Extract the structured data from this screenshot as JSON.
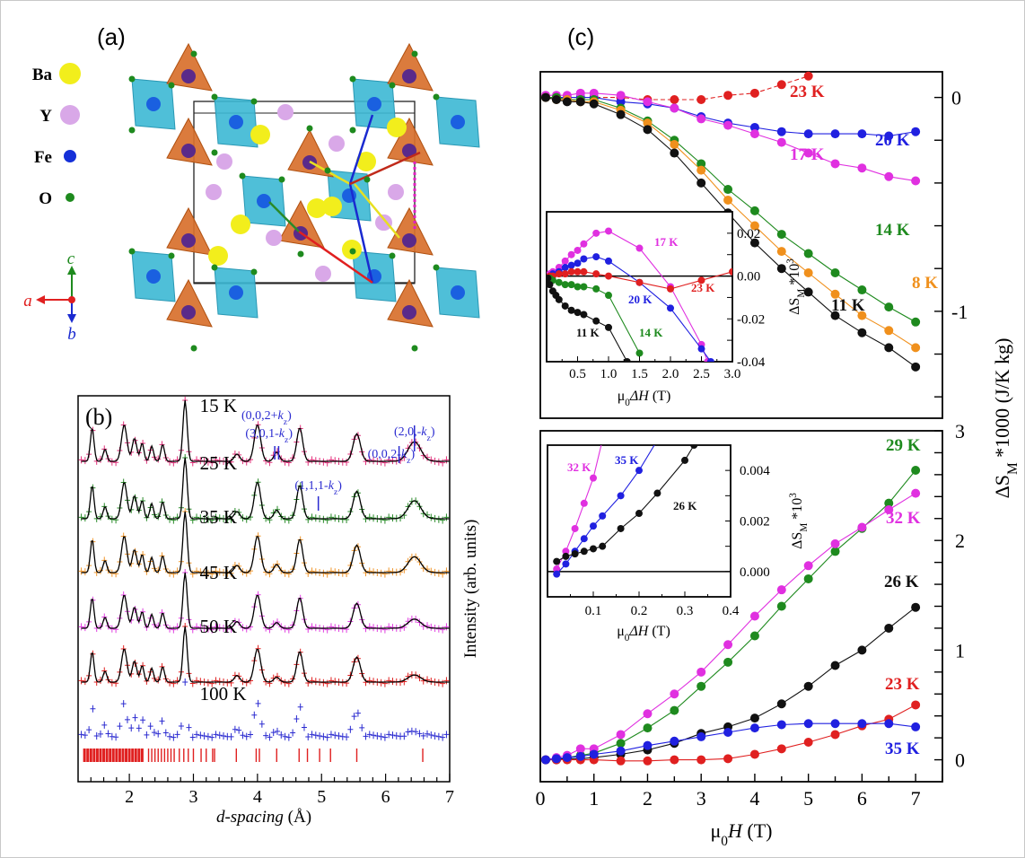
{
  "panel_labels": {
    "a": "(a)",
    "b": "(b)",
    "c": "(c)"
  },
  "structure": {
    "legend": [
      {
        "element": "Ba",
        "color": "#f2ee1c"
      },
      {
        "element": "Y",
        "color": "#d9a8e8"
      },
      {
        "element": "Fe",
        "color": "#1530d8"
      },
      {
        "element": "O",
        "color": "#1e8a1e"
      }
    ],
    "axes_labels": {
      "a": "a",
      "b": "b",
      "c": "c"
    },
    "colors": {
      "octahedron": "#3cb8d4",
      "tetrahedron": "#d8702c",
      "cell": "#222222"
    }
  },
  "chart_data": [
    {
      "id": "b",
      "type": "line",
      "title": "(b)",
      "xlabel": "d-spacing (Å)",
      "ylabel": "Intensity (arb. units)",
      "xlim": [
        1.2,
        7
      ],
      "xticks": [
        2,
        3,
        4,
        5,
        6,
        7
      ],
      "series": [
        {
          "name": "15 K",
          "color": "#e0307a"
        },
        {
          "name": "25 K",
          "color": "#2a8a2a"
        },
        {
          "name": "35 K",
          "color": "#f0962c"
        },
        {
          "name": "45 K",
          "color": "#e040e0"
        },
        {
          "name": "50 K",
          "color": "#e02020"
        },
        {
          "name": "100 K",
          "color": "#2a2ad0"
        }
      ],
      "peaks_d": [
        1.42,
        1.62,
        1.92,
        2.08,
        2.2,
        2.35,
        2.52,
        2.87,
        3.68,
        4.0,
        4.3,
        4.66,
        5.55,
        6.45
      ],
      "bragg_ticks": [
        1.3,
        1.35,
        1.4,
        1.45,
        1.5,
        1.55,
        1.6,
        1.65,
        1.7,
        1.75,
        1.8,
        1.85,
        1.9,
        1.95,
        2.0,
        2.05,
        2.1,
        2.15,
        2.2,
        2.3,
        2.35,
        2.4,
        2.45,
        2.5,
        2.55,
        2.6,
        2.65,
        2.7,
        2.78,
        2.85,
        2.92,
        3.0,
        3.12,
        3.2,
        3.3,
        3.33,
        3.67,
        3.98,
        4.03,
        4.3,
        4.65,
        4.78,
        4.97,
        5.14,
        5.55,
        6.58
      ],
      "annotations": [
        {
          "text": "(0,0,2+kz)",
          "d": 4.28
        },
        {
          "text": "(3,0,1-kz)",
          "d": 4.32
        },
        {
          "text": "(0,0,2-kz)",
          "d": 6.2
        },
        {
          "text": "(2,0,-kz)",
          "d": 6.45
        },
        {
          "text": "(1,1,1-kz)",
          "d": 4.95
        }
      ],
      "annotation_color": "#2a2ad0"
    },
    {
      "id": "c-top",
      "type": "line",
      "xlabel": "μ0H (T)",
      "ylabel": "ΔSM *1000 (J/K kg)",
      "xlim": [
        0,
        7.5
      ],
      "ylim": [
        -1.5,
        0.12
      ],
      "yticks": [
        0,
        -1
      ],
      "series": [
        {
          "name": "23 K",
          "color": "#e02020",
          "dashed": true,
          "x": [
            0.1,
            0.3,
            0.5,
            0.75,
            1,
            1.5,
            2,
            2.5,
            3,
            3.5,
            4,
            4.5,
            5
          ],
          "y": [
            0,
            0,
            0,
            0,
            0,
            0,
            -0.01,
            -0.01,
            -0.01,
            0.01,
            0.02,
            0.06,
            0.1
          ]
        },
        {
          "name": "20 K",
          "color": "#2020e0",
          "x": [
            0.1,
            0.3,
            0.5,
            0.75,
            1,
            1.5,
            2,
            2.5,
            3,
            3.5,
            4,
            4.5,
            5,
            5.5,
            6,
            6.5,
            7
          ],
          "y": [
            0,
            0,
            0,
            0,
            0,
            -0.02,
            -0.03,
            -0.05,
            -0.09,
            -0.12,
            -0.14,
            -0.16,
            -0.17,
            -0.17,
            -0.17,
            -0.18,
            -0.16
          ]
        },
        {
          "name": "17 K",
          "color": "#e030e0",
          "x": [
            0.1,
            0.3,
            0.5,
            0.75,
            1,
            1.5,
            2,
            2.5,
            3,
            3.5,
            4,
            4.5,
            5,
            5.5,
            6,
            6.5,
            7
          ],
          "y": [
            0.01,
            0.01,
            0.01,
            0.02,
            0.02,
            0.01,
            -0.02,
            -0.05,
            -0.1,
            -0.13,
            -0.17,
            -0.21,
            -0.26,
            -0.31,
            -0.33,
            -0.37,
            -0.39
          ]
        },
        {
          "name": "14 K",
          "color": "#1e8a1e",
          "x": [
            0.1,
            0.3,
            0.5,
            0.75,
            1,
            1.5,
            2,
            2.5,
            3,
            3.5,
            4,
            4.5,
            5,
            5.5,
            6,
            6.5,
            7
          ],
          "y": [
            0,
            0,
            -0.01,
            -0.01,
            -0.01,
            -0.05,
            -0.11,
            -0.2,
            -0.31,
            -0.43,
            -0.53,
            -0.64,
            -0.73,
            -0.82,
            -0.9,
            -0.98,
            -1.05
          ]
        },
        {
          "name": "8 K",
          "color": "#f0901c",
          "x": [
            0.1,
            0.3,
            0.5,
            0.75,
            1,
            1.5,
            2,
            2.5,
            3,
            3.5,
            4,
            4.5,
            5,
            5.5,
            6,
            6.5,
            7
          ],
          "y": [
            0,
            -0.01,
            -0.01,
            -0.02,
            -0.02,
            -0.06,
            -0.12,
            -0.22,
            -0.34,
            -0.48,
            -0.6,
            -0.72,
            -0.82,
            -0.92,
            -1.02,
            -1.09,
            -1.17
          ]
        },
        {
          "name": "11 K",
          "color": "#111111",
          "x": [
            0.1,
            0.3,
            0.5,
            0.75,
            1,
            1.5,
            2,
            2.5,
            3,
            3.5,
            4,
            4.5,
            5,
            5.5,
            6,
            6.5,
            7
          ],
          "y": [
            0,
            -0.01,
            -0.02,
            -0.02,
            -0.03,
            -0.08,
            -0.15,
            -0.26,
            -0.4,
            -0.54,
            -0.68,
            -0.8,
            -0.91,
            -1.02,
            -1.1,
            -1.17,
            -1.26
          ]
        }
      ],
      "inset": {
        "xlabel": "μ0ΔH (T)",
        "ylabel": "ΔSM *10^3",
        "xlim": [
          0,
          3.0
        ],
        "ylim": [
          -0.04,
          0.03
        ],
        "xticks": [
          0.5,
          1.0,
          1.5,
          2.0,
          2.5,
          3.0
        ],
        "yticks": [
          0.02,
          0.0,
          -0.02,
          -0.04
        ],
        "series": [
          {
            "name": "17 K",
            "color": "#e030e0",
            "x": [
              0.05,
              0.1,
              0.2,
              0.3,
              0.4,
              0.5,
              0.6,
              0.8,
              1.0,
              1.5,
              2.0,
              2.5,
              2.6
            ],
            "y": [
              0.001,
              0.002,
              0.004,
              0.007,
              0.01,
              0.012,
              0.015,
              0.02,
              0.021,
              0.013,
              -0.005,
              -0.032,
              -0.04
            ]
          },
          {
            "name": "20 K",
            "color": "#2020e0",
            "x": [
              0.05,
              0.1,
              0.2,
              0.3,
              0.4,
              0.5,
              0.6,
              0.8,
              1.0,
              1.5,
              2.0,
              2.5,
              2.65
            ],
            "y": [
              0,
              0.001,
              0.002,
              0.004,
              0.005,
              0.006,
              0.008,
              0.009,
              0.007,
              -0.003,
              -0.015,
              -0.034,
              -0.04
            ]
          },
          {
            "name": "23 K",
            "color": "#e02020",
            "x": [
              0.05,
              0.1,
              0.2,
              0.3,
              0.4,
              0.5,
              0.6,
              0.8,
              1.0,
              1.5,
              2.0,
              2.5,
              3.0
            ],
            "y": [
              0,
              0,
              0.001,
              0.001,
              0.002,
              0.002,
              0.002,
              0.001,
              0,
              -0.003,
              -0.006,
              -0.002,
              0.002
            ]
          },
          {
            "name": "14 K",
            "color": "#1e8a1e",
            "x": [
              0.05,
              0.1,
              0.2,
              0.3,
              0.4,
              0.5,
              0.6,
              0.8,
              1.0,
              1.5
            ],
            "y": [
              -0.001,
              -0.002,
              -0.003,
              -0.004,
              -0.004,
              -0.005,
              -0.005,
              -0.006,
              -0.009,
              -0.036
            ]
          },
          {
            "name": "11 K",
            "color": "#111111",
            "x": [
              0.02,
              0.05,
              0.1,
              0.15,
              0.2,
              0.3,
              0.4,
              0.5,
              0.6,
              0.8,
              1.0,
              1.3
            ],
            "y": [
              -0.001,
              -0.004,
              -0.007,
              -0.009,
              -0.011,
              -0.014,
              -0.016,
              -0.017,
              -0.018,
              -0.021,
              -0.024,
              -0.04
            ]
          }
        ]
      }
    },
    {
      "id": "c-bottom",
      "type": "line",
      "xlabel": "μ0H (T)",
      "ylabel": "ΔSM *1000 (J/K kg)",
      "xlim": [
        0,
        7.5
      ],
      "xticks": [
        0,
        1,
        2,
        3,
        4,
        5,
        6,
        7
      ],
      "ylim": [
        -0.2,
        3
      ],
      "yticks": [
        0,
        1,
        2,
        3
      ],
      "series": [
        {
          "name": "29 K",
          "color": "#1e8a1e",
          "x": [
            0.1,
            0.3,
            0.5,
            0.75,
            1,
            1.5,
            2,
            2.5,
            3,
            3.5,
            4,
            4.5,
            5,
            5.5,
            6,
            6.5,
            7
          ],
          "y": [
            0,
            0.01,
            0.02,
            0.04,
            0.06,
            0.15,
            0.29,
            0.45,
            0.67,
            0.89,
            1.13,
            1.4,
            1.65,
            1.9,
            2.11,
            2.34,
            2.64
          ]
        },
        {
          "name": "32 K",
          "color": "#e030e0",
          "x": [
            0.1,
            0.3,
            0.5,
            0.75,
            1,
            1.5,
            2,
            2.5,
            3,
            3.5,
            4,
            4.5,
            5,
            5.5,
            6,
            6.5,
            7
          ],
          "y": [
            0,
            0.02,
            0.04,
            0.1,
            0.1,
            0.23,
            0.42,
            0.6,
            0.8,
            1.05,
            1.31,
            1.55,
            1.77,
            1.97,
            2.12,
            2.28,
            2.43
          ]
        },
        {
          "name": "26 K",
          "color": "#111111",
          "x": [
            0.1,
            0.3,
            0.5,
            0.75,
            1,
            1.5,
            2,
            2.5,
            3,
            3.5,
            4,
            4.5,
            5,
            5.5,
            6,
            6.5,
            7
          ],
          "y": [
            0,
            0,
            0.01,
            0.01,
            0.02,
            0.05,
            0.09,
            0.15,
            0.24,
            0.3,
            0.38,
            0.51,
            0.67,
            0.86,
            1.0,
            1.2,
            1.39
          ]
        },
        {
          "name": "23 K",
          "color": "#e02020",
          "x": [
            0.1,
            0.3,
            0.5,
            0.75,
            1,
            1.5,
            2,
            2.5,
            3,
            3.5,
            4,
            4.5,
            5,
            5.5,
            6,
            6.5,
            7
          ],
          "y": [
            0,
            0,
            0,
            0,
            0,
            -0.01,
            -0.01,
            0,
            0,
            0.01,
            0.05,
            0.1,
            0.16,
            0.23,
            0.31,
            0.37,
            0.5
          ]
        },
        {
          "name": "35 K",
          "color": "#2020e0",
          "x": [
            0.1,
            0.3,
            0.5,
            0.75,
            1,
            1.5,
            2,
            2.5,
            3,
            3.5,
            4,
            4.5,
            5,
            5.5,
            6,
            6.5,
            7
          ],
          "y": [
            0,
            0.01,
            0.02,
            0.03,
            0.05,
            0.08,
            0.13,
            0.17,
            0.21,
            0.25,
            0.29,
            0.32,
            0.33,
            0.33,
            0.33,
            0.33,
            0.3
          ]
        }
      ],
      "inset": {
        "xlabel": "μ0ΔH (T)",
        "ylabel": "ΔSM *10^3",
        "xlim": [
          0,
          0.4
        ],
        "ylim": [
          -0.001,
          0.005
        ],
        "xticks": [
          0.1,
          0.2,
          0.3,
          0.4
        ],
        "yticks": [
          0.0,
          0.002,
          0.004
        ],
        "series": [
          {
            "name": "32 K",
            "color": "#e030e0",
            "x": [
              0.02,
              0.04,
              0.06,
              0.08,
              0.1,
              0.12
            ],
            "y": [
              0.0001,
              0.0008,
              0.0017,
              0.0027,
              0.0037,
              0.0052
            ]
          },
          {
            "name": "35 K",
            "color": "#2020e0",
            "x": [
              0.02,
              0.04,
              0.06,
              0.08,
              0.1,
              0.12,
              0.16,
              0.2,
              0.24
            ],
            "y": [
              -0.0001,
              0.0003,
              0.0008,
              0.0013,
              0.0018,
              0.0022,
              0.003,
              0.004,
              0.0052
            ]
          },
          {
            "name": "26 K",
            "color": "#111111",
            "x": [
              0.02,
              0.04,
              0.06,
              0.08,
              0.1,
              0.12,
              0.16,
              0.2,
              0.24,
              0.3,
              0.32
            ],
            "y": [
              0.0004,
              0.0006,
              0.0007,
              0.0008,
              0.0009,
              0.001,
              0.0017,
              0.0023,
              0.0031,
              0.0044,
              0.005
            ]
          }
        ]
      }
    }
  ]
}
